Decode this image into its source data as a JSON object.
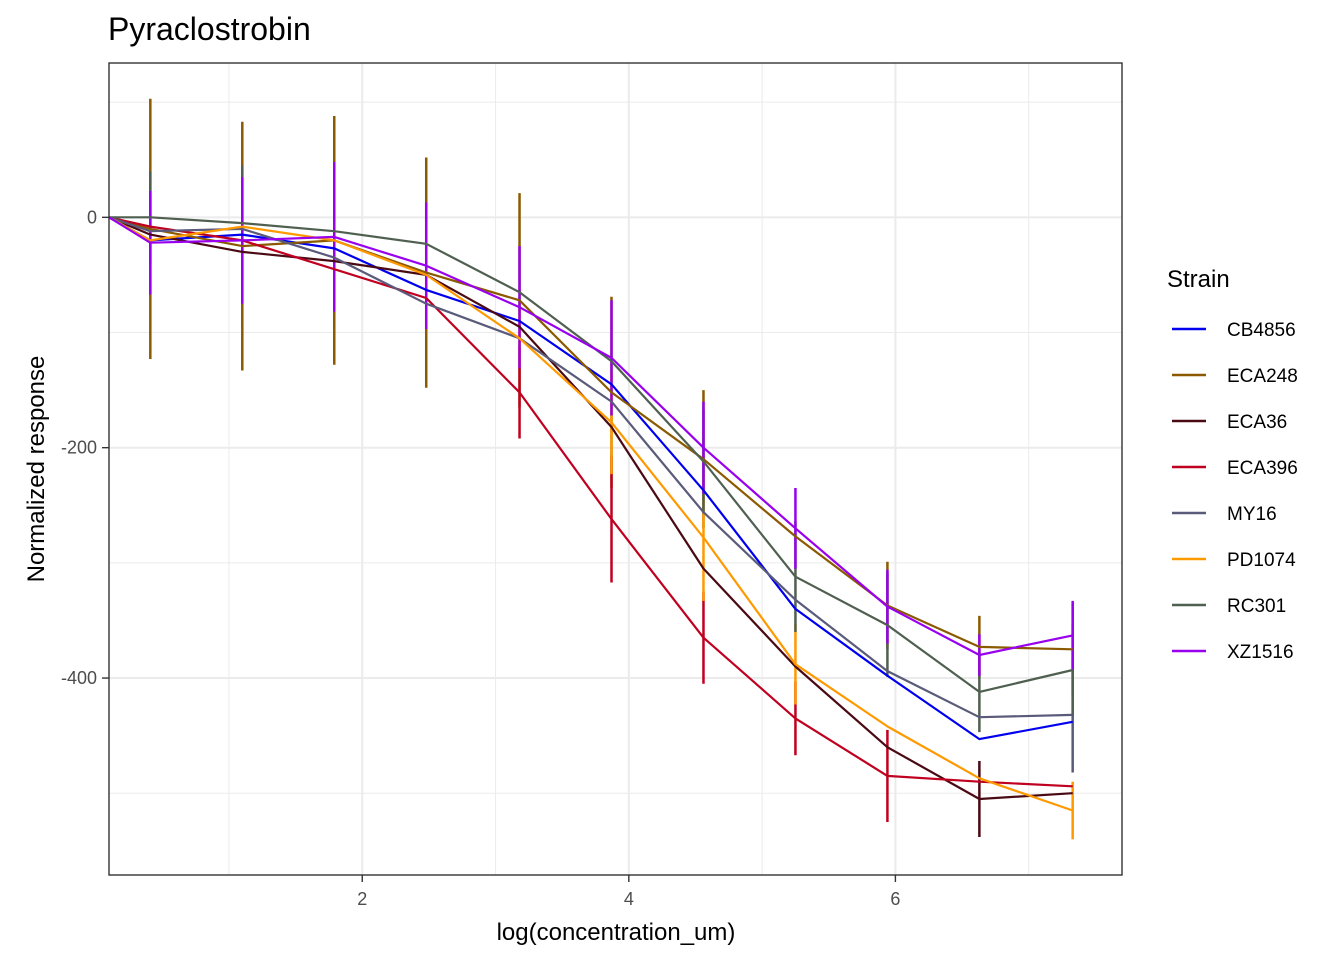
{
  "chart_data": {
    "type": "line",
    "title": "Pyraclostrobin",
    "xlabel": "log(concentration_um)",
    "ylabel": "Normalized response",
    "xlim": [
      0.1,
      7.7
    ],
    "ylim": [
      -571,
      134
    ],
    "x_ticks": [
      2,
      4,
      6
    ],
    "x_tick_labels": [
      "2",
      "4",
      "6"
    ],
    "y_ticks": [
      0,
      -200,
      -400
    ],
    "y_tick_labels": [
      "0",
      "-200",
      "-400"
    ],
    "grid": true,
    "legend_title": "Strain",
    "legend_position": "right",
    "x": [
      0.1,
      0.41,
      1.1,
      1.79,
      2.48,
      3.18,
      3.87,
      4.56,
      5.25,
      5.94,
      6.63,
      7.33
    ],
    "series": [
      {
        "name": "CB4856",
        "color": "#0000ee",
        "values": [
          0,
          -20,
          -15,
          -27,
          -63,
          -90,
          -145,
          -237,
          -340,
          -398,
          -453,
          -438
        ],
        "err": [
          0,
          0,
          0,
          0,
          0,
          0,
          0,
          0,
          0,
          0,
          0,
          0
        ]
      },
      {
        "name": "ECA248",
        "color": "#8b5a00",
        "values": [
          0,
          -10,
          -25,
          -20,
          -48,
          -72,
          -152,
          -210,
          -277,
          -337,
          -373,
          -375
        ],
        "err": [
          0,
          113,
          108,
          108,
          100,
          93,
          83,
          60,
          0,
          38,
          27,
          40
        ]
      },
      {
        "name": "ECA36",
        "color": "#4a0a14",
        "values": [
          0,
          -15,
          -30,
          -38,
          -50,
          -95,
          -182,
          -305,
          -390,
          -460,
          -505,
          -500
        ],
        "err": [
          0,
          0,
          0,
          0,
          0,
          0,
          0,
          0,
          0,
          0,
          33,
          0
        ]
      },
      {
        "name": "ECA396",
        "color": "#c00020",
        "values": [
          0,
          -8,
          -20,
          -45,
          -70,
          -152,
          -262,
          -365,
          -435,
          -485,
          -490,
          -494
        ],
        "err": [
          0,
          0,
          0,
          0,
          0,
          40,
          55,
          40,
          32,
          40,
          0,
          0
        ]
      },
      {
        "name": "MY16",
        "color": "#5a5a7a",
        "values": [
          0,
          -12,
          -10,
          -35,
          -75,
          -105,
          -160,
          -256,
          -332,
          -394,
          -434,
          -432
        ],
        "err": [
          0,
          0,
          0,
          0,
          0,
          0,
          0,
          0,
          0,
          0,
          0,
          50
        ]
      },
      {
        "name": "PD1074",
        "color": "#ff9900",
        "values": [
          0,
          -20,
          -8,
          -20,
          -50,
          -105,
          -178,
          -278,
          -388,
          -442,
          -487,
          -515
        ],
        "err": [
          0,
          0,
          0,
          0,
          0,
          25,
          45,
          55,
          35,
          0,
          0,
          25
        ]
      },
      {
        "name": "RC301",
        "color": "#506050",
        "values": [
          0,
          0,
          -5,
          -12,
          -23,
          -65,
          -125,
          -212,
          -312,
          -354,
          -412,
          -393
        ],
        "err": [
          0,
          40,
          50,
          0,
          0,
          0,
          0,
          45,
          48,
          45,
          35,
          40
        ]
      },
      {
        "name": "XZ1516",
        "color": "#9900ee",
        "values": [
          0,
          -22,
          -20,
          -17,
          -42,
          -78,
          -122,
          -200,
          -270,
          -338,
          -380,
          -363
        ],
        "err": [
          0,
          45,
          55,
          65,
          55,
          53,
          50,
          40,
          35,
          32,
          18,
          30
        ]
      }
    ]
  }
}
